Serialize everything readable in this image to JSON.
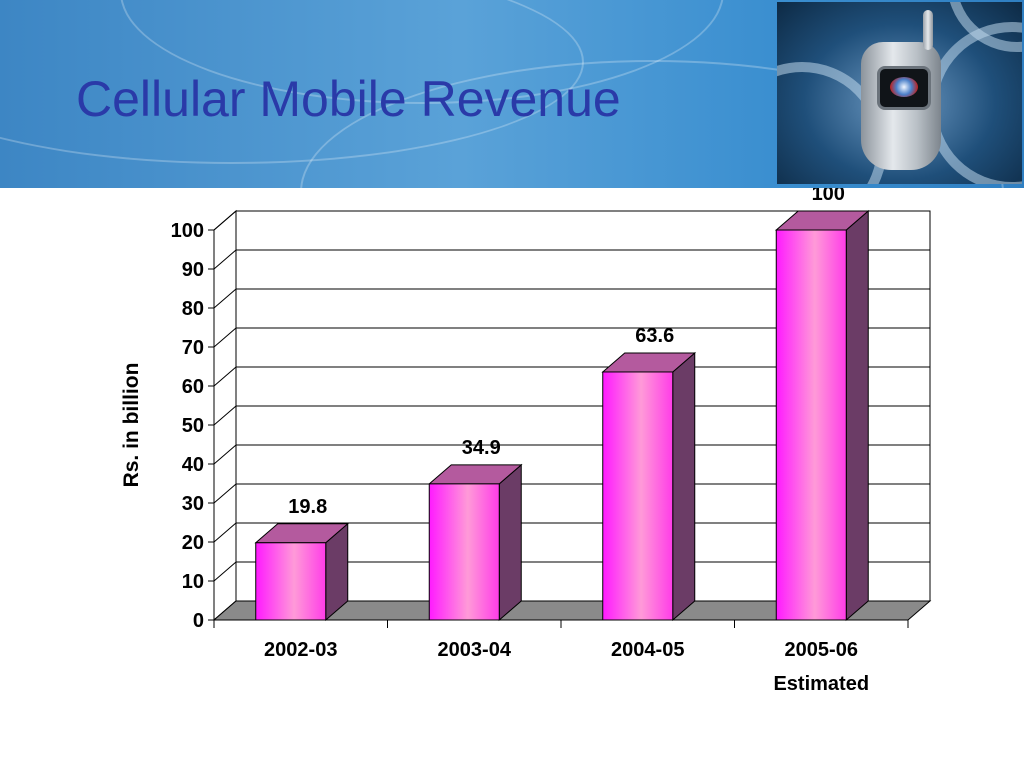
{
  "slide": {
    "title": "Cellular Mobile Revenue"
  },
  "chart_data": {
    "type": "bar",
    "categories": [
      "2002-03",
      "2003-04",
      "2004-05",
      "2005-06"
    ],
    "category_sublabels": [
      "",
      "",
      "",
      "Estimated"
    ],
    "values": [
      19.8,
      34.9,
      63.6,
      100
    ],
    "data_labels": [
      "19.8",
      "34.9",
      "63.6",
      "100"
    ],
    "title": "",
    "xlabel": "",
    "ylabel": "Rs. in billion",
    "ylim": [
      0,
      100
    ],
    "yticks": [
      0,
      10,
      20,
      30,
      40,
      50,
      60,
      70,
      80,
      90,
      100
    ],
    "grid": true,
    "style": "3d-column",
    "colors": {
      "bar_front_edge": "#ff1aff",
      "bar_front_center": "#ff9ad8",
      "bar_side": "#6b3c66",
      "bar_top": "#b45a9e",
      "floor": "#8a8a8a"
    }
  }
}
